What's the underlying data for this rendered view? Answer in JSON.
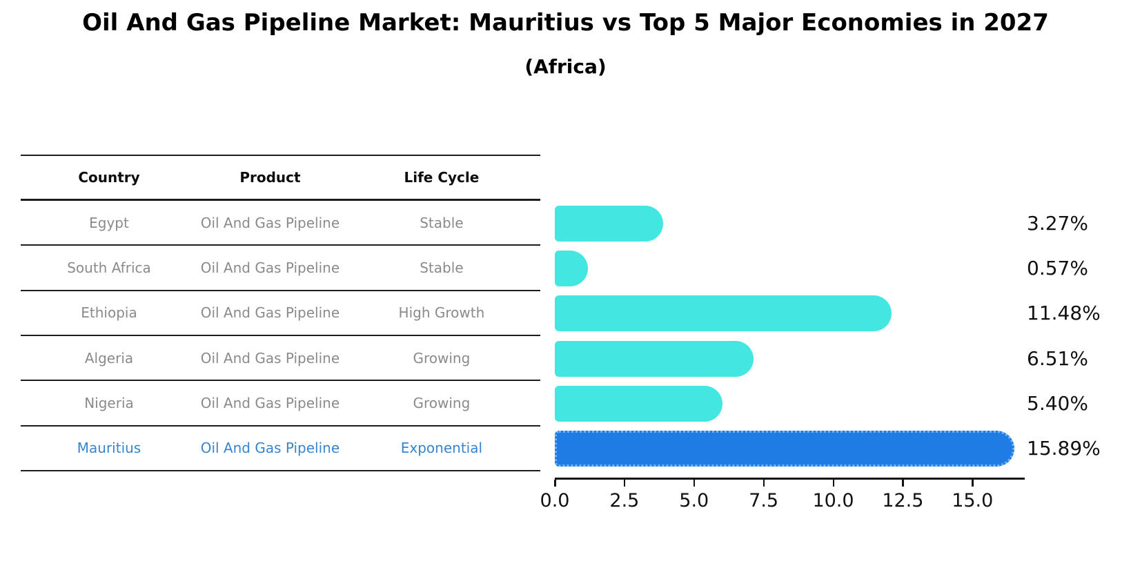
{
  "title": "Oil And Gas Pipeline Market: Mauritius vs Top 5 Major Economies in 2027",
  "subtitle": "(Africa)",
  "table": {
    "headers": [
      "Country",
      "Product",
      "Life Cycle"
    ],
    "rows": [
      {
        "country": "Egypt",
        "product": "Oil And Gas Pipeline",
        "life_cycle": "Stable",
        "highlight": false
      },
      {
        "country": "South Africa",
        "product": "Oil And Gas Pipeline",
        "life_cycle": "Stable",
        "highlight": false
      },
      {
        "country": "Ethiopia",
        "product": "Oil And Gas Pipeline",
        "life_cycle": "High Growth",
        "highlight": false
      },
      {
        "country": "Algeria",
        "product": "Oil And Gas Pipeline",
        "life_cycle": "Growing",
        "highlight": false
      },
      {
        "country": "Nigeria",
        "product": "Oil And Gas Pipeline",
        "life_cycle": "Growing",
        "highlight": false
      },
      {
        "country": "Mauritius",
        "product": "Oil And Gas Pipeline",
        "life_cycle": "Exponential",
        "highlight": true
      }
    ]
  },
  "chart_data": {
    "type": "bar",
    "orientation": "horizontal",
    "title": "Oil And Gas Pipeline Market: Mauritius vs Top 5 Major Economies in 2027 (Africa)",
    "categories": [
      "Egypt",
      "South Africa",
      "Ethiopia",
      "Algeria",
      "Nigeria",
      "Mauritius"
    ],
    "values": [
      3.27,
      0.57,
      11.48,
      6.51,
      5.4,
      15.89
    ],
    "value_labels": [
      "3.27%",
      "0.57%",
      "11.48%",
      "6.51%",
      "5.40%",
      "15.89%"
    ],
    "x_tick_labels": [
      "0.0",
      "2.5",
      "5.0",
      "7.5",
      "10.0",
      "12.5",
      "15.0"
    ],
    "x_tick_values": [
      0,
      2.5,
      5,
      7.5,
      10,
      12.5,
      15
    ],
    "xlim": [
      0,
      16.9
    ],
    "grid": false,
    "legend": "none",
    "highlight_category": "Mauritius",
    "colors": {
      "bar": "#43e6e1",
      "highlight_bar": "#1e7ce4",
      "highlight_bar_border": "#74b4f4",
      "value_label_text": "#111111",
      "axis_text": "#111111",
      "table_row_text": "#8a8a8a",
      "table_header_text": "#0d0d0d",
      "highlight_row_text": "#3585cf",
      "rule_lines": "#1c1c1c"
    }
  }
}
